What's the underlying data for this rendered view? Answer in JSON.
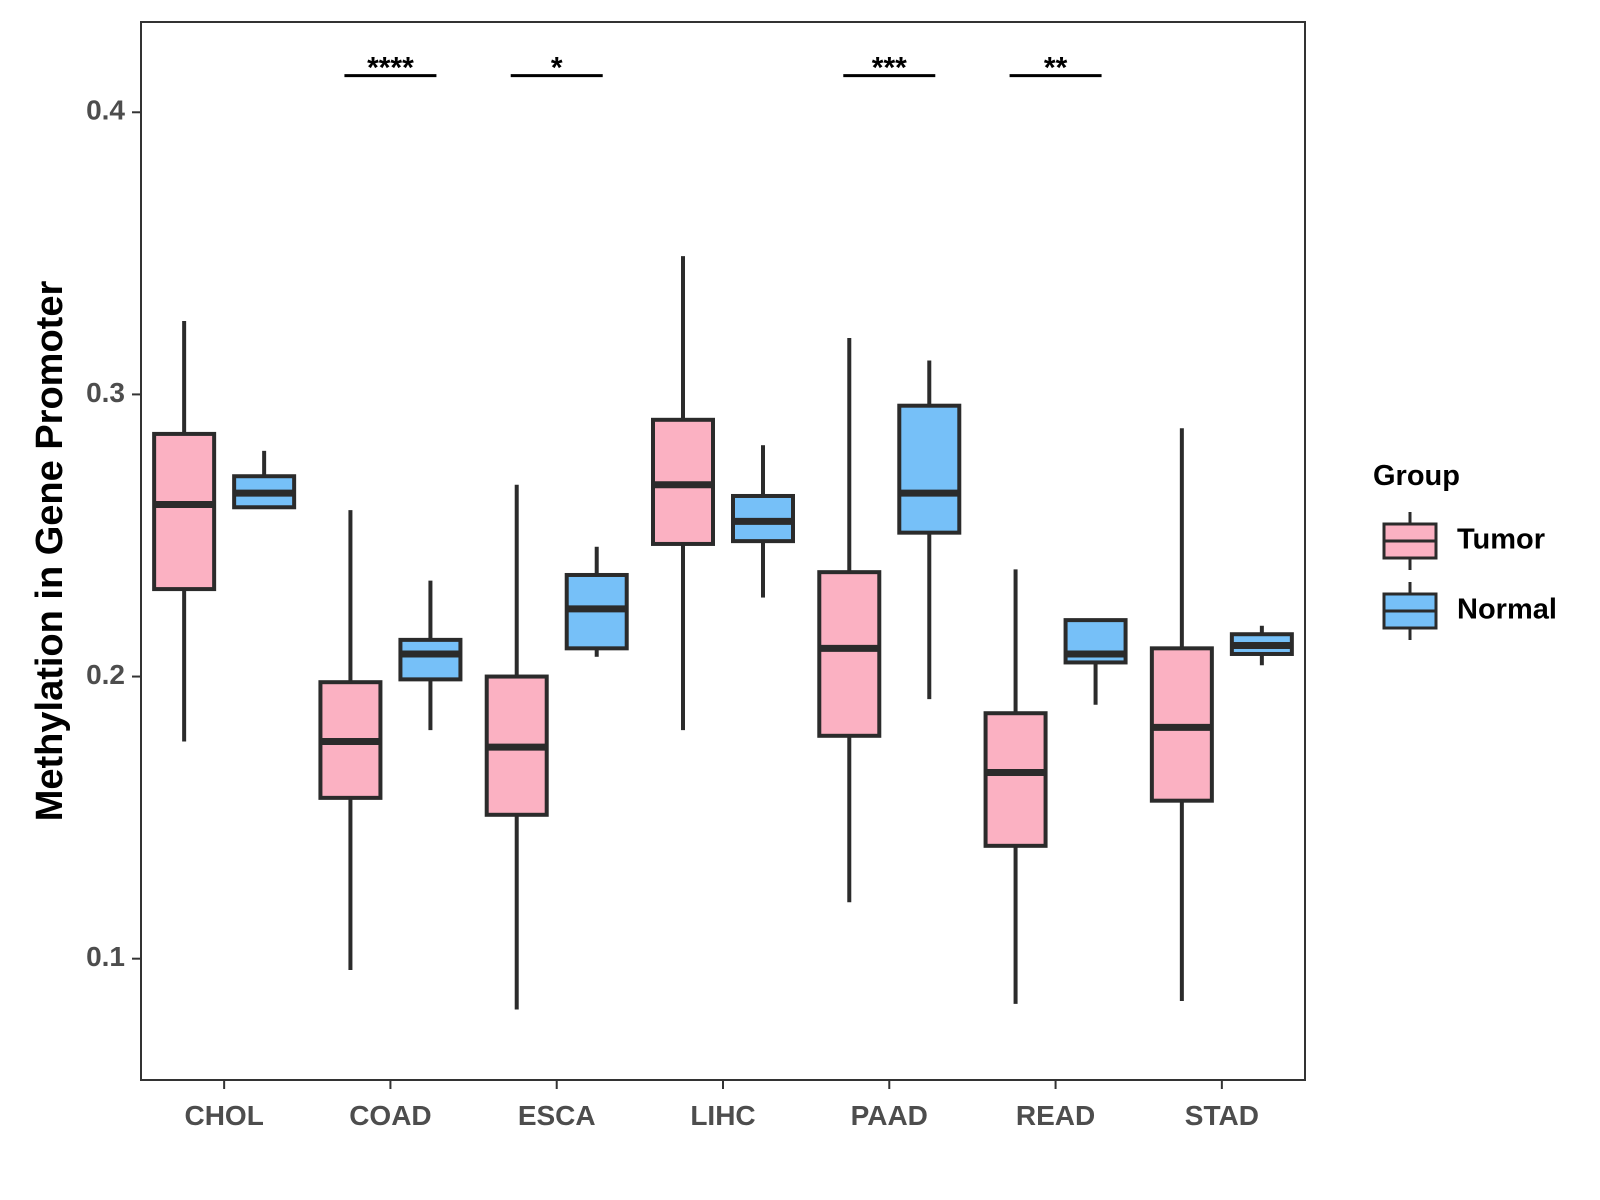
{
  "chart_data": {
    "type": "boxplot",
    "title": "",
    "xlabel": "",
    "ylabel": "Methylation in Gene Promoter",
    "ylim": [
      0.057,
      0.432
    ],
    "yticks": [
      0.1,
      0.2,
      0.3,
      0.4
    ],
    "ytick_labels": [
      "0.1",
      "0.2",
      "0.3",
      "0.4"
    ],
    "categories": [
      "CHOL",
      "COAD",
      "ESCA",
      "LIHC",
      "PAAD",
      "READ",
      "STAD"
    ],
    "grid": false,
    "legend": {
      "title": "Group",
      "position": "right"
    },
    "series": [
      {
        "name": "Tumor",
        "color": "#FBB1C2",
        "boxes": [
          {
            "min": 0.177,
            "q1": 0.231,
            "median": 0.261,
            "q3": 0.286,
            "max": 0.326
          },
          {
            "min": 0.096,
            "q1": 0.157,
            "median": 0.177,
            "q3": 0.198,
            "max": 0.259
          },
          {
            "min": 0.082,
            "q1": 0.151,
            "median": 0.175,
            "q3": 0.2,
            "max": 0.268
          },
          {
            "min": 0.181,
            "q1": 0.247,
            "median": 0.268,
            "q3": 0.291,
            "max": 0.349
          },
          {
            "min": 0.12,
            "q1": 0.179,
            "median": 0.21,
            "q3": 0.237,
            "max": 0.32
          },
          {
            "min": 0.084,
            "q1": 0.14,
            "median": 0.166,
            "q3": 0.187,
            "max": 0.238
          },
          {
            "min": 0.085,
            "q1": 0.156,
            "median": 0.182,
            "q3": 0.21,
            "max": 0.288
          }
        ]
      },
      {
        "name": "Normal",
        "color": "#76C0F8",
        "boxes": [
          {
            "min": 0.26,
            "q1": 0.26,
            "median": 0.265,
            "q3": 0.271,
            "max": 0.28
          },
          {
            "min": 0.181,
            "q1": 0.199,
            "median": 0.208,
            "q3": 0.213,
            "max": 0.234
          },
          {
            "min": 0.207,
            "q1": 0.21,
            "median": 0.224,
            "q3": 0.236,
            "max": 0.246
          },
          {
            "min": 0.228,
            "q1": 0.248,
            "median": 0.255,
            "q3": 0.264,
            "max": 0.282
          },
          {
            "min": 0.192,
            "q1": 0.251,
            "median": 0.265,
            "q3": 0.296,
            "max": 0.312
          },
          {
            "min": 0.19,
            "q1": 0.205,
            "median": 0.208,
            "q3": 0.22,
            "max": 0.22
          },
          {
            "min": 0.204,
            "q1": 0.208,
            "median": 0.211,
            "q3": 0.215,
            "max": 0.218
          }
        ]
      }
    ],
    "significance": [
      {
        "category": "COAD",
        "label": "****",
        "y": 0.413
      },
      {
        "category": "ESCA",
        "label": "*",
        "y": 0.413
      },
      {
        "category": "PAAD",
        "label": "***",
        "y": 0.413
      },
      {
        "category": "READ",
        "label": "**",
        "y": 0.413
      }
    ]
  }
}
